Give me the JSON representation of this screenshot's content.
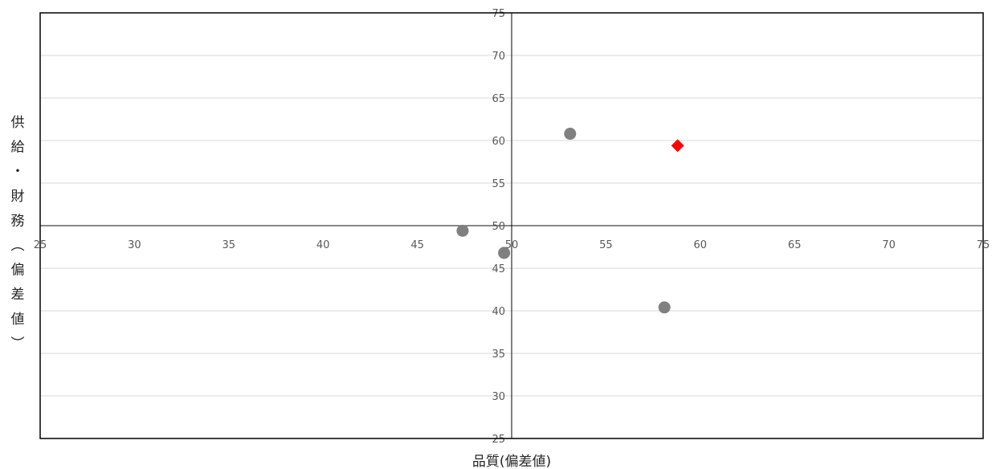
{
  "chart_data": {
    "type": "scatter",
    "xlabel": "品質(偏差値)",
    "ylabel": "供給・財務(偏差値)",
    "xlim": [
      25,
      75
    ],
    "ylim": [
      25,
      75
    ],
    "x_ticks": [
      "25",
      "30",
      "35",
      "40",
      "45",
      "50",
      "55",
      "60",
      "65",
      "70",
      "75"
    ],
    "y_ticks": [
      "25",
      "30",
      "35",
      "40",
      "45",
      "50",
      "55",
      "60",
      "65",
      "70",
      "75"
    ],
    "axis_cross": [
      50,
      50
    ],
    "grid": "horizontal",
    "series": [
      {
        "marker": "circle",
        "color": "#808080",
        "points": [
          {
            "x": 53.1,
            "y": 60.8
          },
          {
            "x": 47.4,
            "y": 49.4
          },
          {
            "x": 49.6,
            "y": 46.8
          },
          {
            "x": 58.1,
            "y": 40.4
          }
        ]
      },
      {
        "marker": "diamond",
        "color": "#ff0000",
        "points": [
          {
            "x": 58.8,
            "y": 59.4
          }
        ]
      }
    ]
  }
}
